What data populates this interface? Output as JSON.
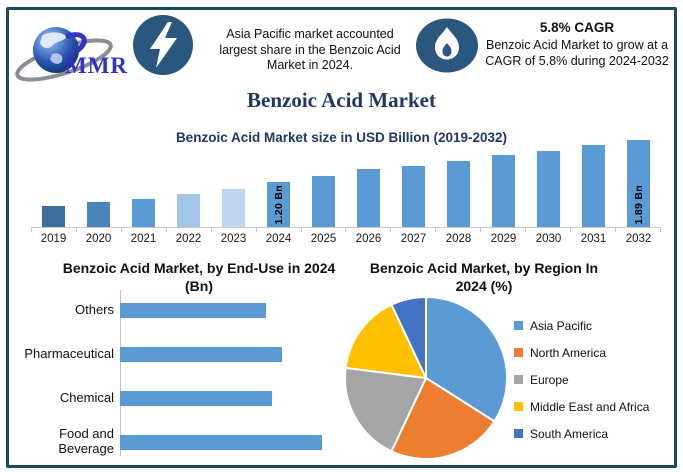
{
  "brand": {
    "logo_text": "MMR"
  },
  "header": {
    "left_stat": {
      "icon": "lightning-bolt",
      "lines": [
        "Asia Pacific market accounted",
        "largest share in the Benzoic Acid",
        "Market in 2024."
      ]
    },
    "right_stat": {
      "icon": "flame",
      "heading": "5.8% CAGR",
      "lines": [
        "Benzoic Acid Market to grow at a",
        "CAGR of 5.8% during 2024-2032"
      ]
    }
  },
  "page_title": "Benzoic Acid Market",
  "colors": {
    "frame_border": "#1E4A60",
    "icon_circle": "#2A577D",
    "navy_text": "#1F3864",
    "logo_blue": "#3232C8",
    "accent_blue": "#5B9BD5",
    "axis_gray": "#C9C9C9"
  },
  "chart_data": [
    {
      "type": "bar",
      "title": "Benzoic Acid Market size in USD Billion (2019-2032)",
      "categories": [
        "2019",
        "2020",
        "2021",
        "2022",
        "2023",
        "2024",
        "2025",
        "2026",
        "2027",
        "2028",
        "2029",
        "2030",
        "2031",
        "2032"
      ],
      "values": [
        0.82,
        0.88,
        0.93,
        1.01,
        1.09,
        1.2,
        1.3,
        1.41,
        1.46,
        1.55,
        1.65,
        1.71,
        1.81,
        1.89
      ],
      "unit": "USD Billion",
      "ylim": [
        0.48,
        1.95
      ],
      "grid": false,
      "bar_colors": [
        "#3D6E99",
        "#4886BC",
        "#5B9BD5",
        "#A2C5E8",
        "#BDD7EE",
        "#5B9BD5",
        "#5B9BD5",
        "#5B9BD5",
        "#5B9BD5",
        "#5B9BD5",
        "#5B9BD5",
        "#5B9BD5",
        "#5B9BD5",
        "#5B9BD5"
      ],
      "annotations": [
        {
          "category": "2024",
          "text": "1.20 Bn"
        },
        {
          "category": "2032",
          "text": "1.89 Bn"
        }
      ]
    },
    {
      "type": "bar",
      "orientation": "horizontal",
      "title": "Benzoic Acid Market, by End-Use in 2024 (Bn)",
      "title_lines": [
        "Benzoic Acid Market, by End-Use in 2024",
        "(Bn)"
      ],
      "categories": [
        "Others",
        "Pharmaceutical",
        "Chemical",
        "Food and Beverage"
      ],
      "values": [
        0.29,
        0.32,
        0.3,
        0.4
      ],
      "xlim": [
        0,
        0.45
      ],
      "grid": false,
      "bar_color": "#5B9BD5"
    },
    {
      "type": "pie",
      "title": "Benzoic Acid Market, by Region In 2024 (%)",
      "title_lines": [
        "Benzoic Acid Market, by Region In",
        "2024 (%)"
      ],
      "categories": [
        "Asia Pacific",
        "North America",
        "Europe",
        "Middle East and Africa",
        "South America"
      ],
      "values": [
        34,
        23,
        20,
        16,
        7
      ],
      "colors": [
        "#5B9BD5",
        "#ED7D31",
        "#A5A5A5",
        "#FFC000",
        "#4472C4"
      ],
      "legend_position": "right"
    }
  ]
}
